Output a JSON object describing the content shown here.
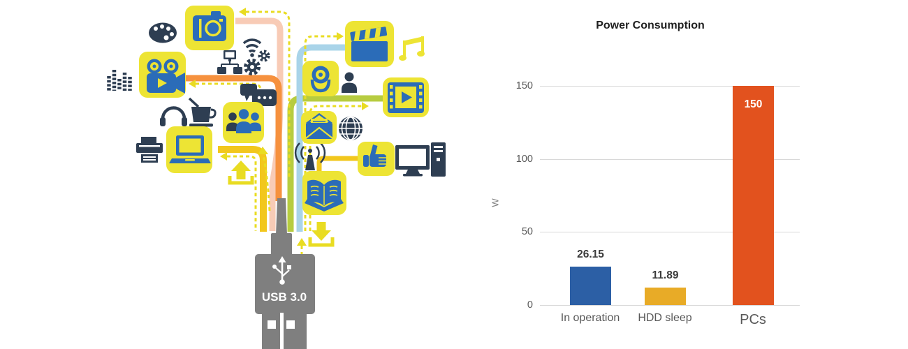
{
  "illustration": {
    "usb_label": "USB 3.0",
    "tiles": [
      "camera",
      "video-camera",
      "clapperboard",
      "webcam",
      "video-player",
      "people-group",
      "email",
      "thumbs-up",
      "laptop",
      "open-book"
    ],
    "floating_icons": [
      "palette",
      "equalizer",
      "wifi",
      "network",
      "gears",
      "music-note",
      "person",
      "chat-bubbles",
      "headphones",
      "coffee-cup",
      "printer",
      "globe",
      "antenna",
      "desktop-computer",
      "upload-arrow",
      "download-arrow"
    ],
    "colors": {
      "tile_yellow": "#EDE434",
      "icon_blue": "#2B6CB8",
      "icon_dark": "#2E3E52",
      "cable_orange": "#F6913E",
      "cable_salmon": "#F8CBB6",
      "cable_yellow": "#F2C71D",
      "cable_green": "#B7CC40",
      "cable_lightblue": "#A9D4E9",
      "arrow_yellow": "#E9DC22",
      "usb_gray": "#7F7F7F"
    }
  },
  "chart_data": {
    "type": "bar",
    "title": "Power Consumption",
    "xlabel": "",
    "ylabel": "W",
    "categories": [
      "In operation",
      "HDD sleep",
      "PCs"
    ],
    "values": [
      26.15,
      11.89,
      150
    ],
    "value_labels": [
      "26.15",
      "11.89",
      "150"
    ],
    "ticks": [
      "150",
      "100",
      "50",
      "0"
    ],
    "ylim": [
      0,
      150
    ],
    "grid": true,
    "legend": false,
    "label_inside": [
      false,
      false,
      true
    ],
    "bar_colors": [
      "#2C5FA5",
      "#E8AB27",
      "#E2521E"
    ]
  }
}
